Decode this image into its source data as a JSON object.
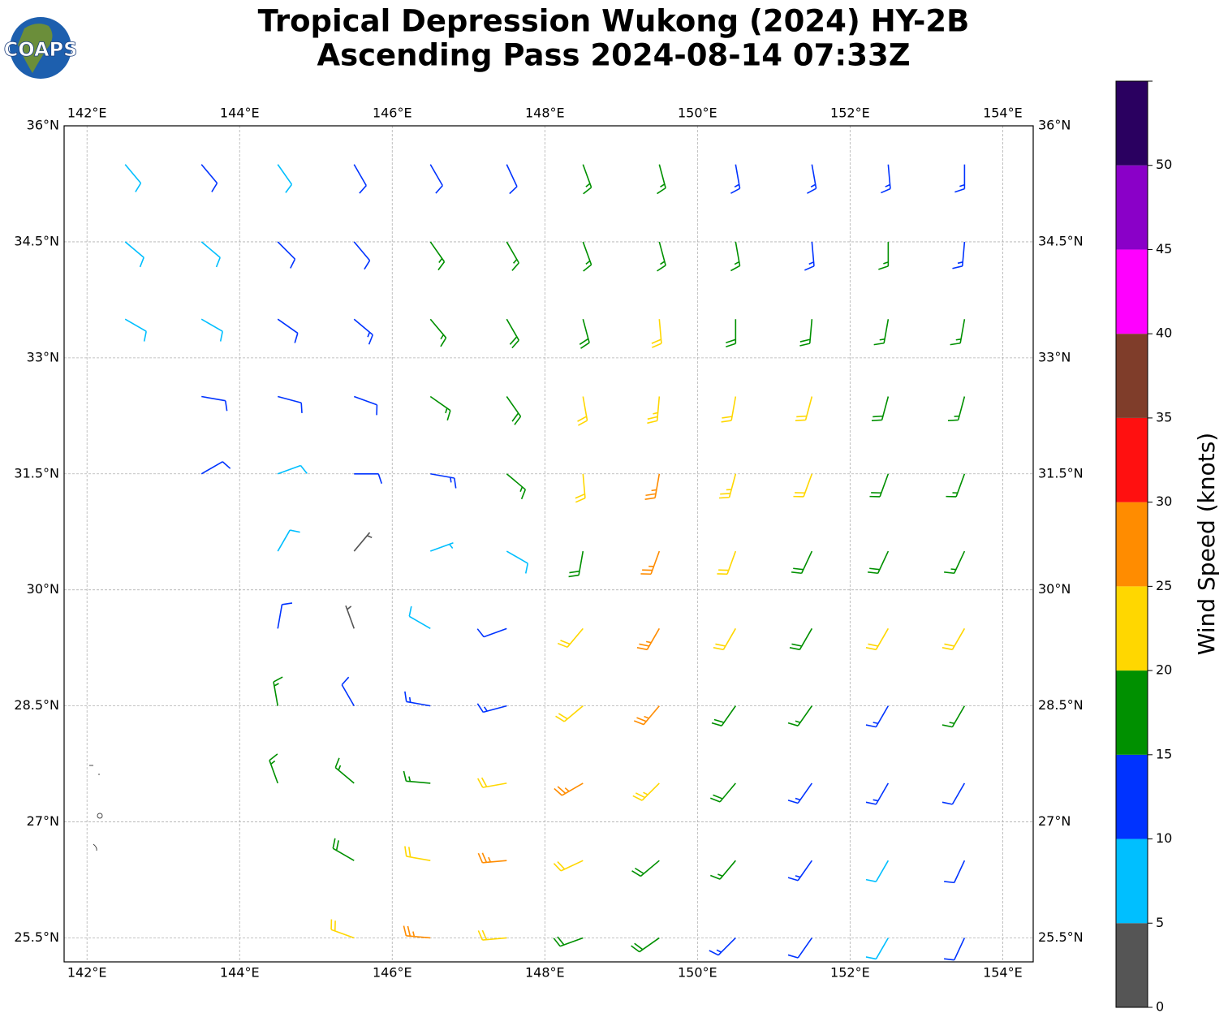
{
  "chart_data": {
    "type": "wind_barbs",
    "title": "Tropical Depression Wukong (2024) HY-2B",
    "subtitle": "Ascending Pass 2024-08-14 07:33Z",
    "logo_text": "COAPS",
    "xlim": [
      141.7,
      154.4
    ],
    "ylim": [
      25.19,
      36
    ],
    "xticks": [
      {
        "value": 142,
        "label": "142°E"
      },
      {
        "value": 144,
        "label": "144°E"
      },
      {
        "value": 146,
        "label": "146°E"
      },
      {
        "value": 148,
        "label": "148°E"
      },
      {
        "value": 150,
        "label": "150°E"
      },
      {
        "value": 152,
        "label": "152°E"
      },
      {
        "value": 154,
        "label": "154°E"
      }
    ],
    "yticks": [
      {
        "value": 25.5,
        "label": "25.5°N"
      },
      {
        "value": 27,
        "label": "27°N"
      },
      {
        "value": 28.5,
        "label": "28.5°N"
      },
      {
        "value": 30,
        "label": "30°N"
      },
      {
        "value": 31.5,
        "label": "31.5°N"
      },
      {
        "value": 33,
        "label": "33°N"
      },
      {
        "value": 34.5,
        "label": "34.5°N"
      },
      {
        "value": 36,
        "label": "36°N"
      }
    ],
    "grid": true,
    "field": {
      "lons": [
        142.5,
        143.5,
        144.5,
        145.5,
        146.5,
        147.5,
        148.5,
        149.5,
        150.5,
        151.5,
        152.5,
        153.5
      ],
      "lats": [
        35.5,
        34.5,
        33.5,
        32.5,
        31.5,
        30.5,
        29.5,
        28.5,
        27.5,
        26.5,
        25.5
      ],
      "speeds": [
        [
          8,
          12,
          8,
          12,
          12,
          12,
          16,
          16,
          13,
          13,
          13,
          13
        ],
        [
          8,
          8,
          12,
          12,
          16,
          16,
          17,
          17,
          16,
          14,
          16,
          13
        ],
        [
          8,
          8,
          12,
          13,
          17,
          18,
          18,
          21,
          19,
          18,
          17,
          16
        ],
        [
          null,
          12,
          12,
          12,
          16,
          18,
          22,
          23,
          22,
          21,
          18,
          17
        ],
        [
          null,
          11,
          9,
          11,
          13,
          16,
          22,
          26,
          23,
          22,
          19,
          17
        ],
        [
          null,
          null,
          8,
          4,
          7,
          8,
          18,
          26,
          22,
          19,
          18,
          17
        ],
        [
          null,
          null,
          11,
          4,
          9,
          12,
          21,
          27,
          22,
          18,
          21,
          21
        ],
        [
          null,
          null,
          16,
          12,
          13,
          14,
          22,
          26,
          19,
          17,
          14,
          17
        ],
        [
          null,
          null,
          17,
          16,
          17,
          22,
          26,
          23,
          19,
          14,
          13,
          12
        ],
        [
          null,
          null,
          null,
          18,
          21,
          26,
          22,
          19,
          17,
          13,
          9,
          11
        ],
        [
          null,
          null,
          null,
          21,
          26,
          22,
          19,
          18,
          14,
          12,
          9,
          12
        ]
      ],
      "directions": [
        [
          140,
          140,
          145,
          150,
          150,
          155,
          160,
          165,
          170,
          170,
          175,
          180
        ],
        [
          130,
          130,
          135,
          140,
          145,
          150,
          160,
          165,
          170,
          175,
          180,
          185
        ],
        [
          120,
          120,
          125,
          130,
          140,
          150,
          165,
          175,
          180,
          185,
          190,
          190
        ],
        [
          null,
          100,
          105,
          110,
          125,
          145,
          170,
          185,
          190,
          195,
          195,
          195
        ],
        [
          null,
          60,
          70,
          90,
          100,
          130,
          175,
          190,
          195,
          200,
          200,
          200
        ],
        [
          null,
          null,
          30,
          40,
          70,
          120,
          190,
          200,
          200,
          205,
          205,
          205
        ],
        [
          null,
          null,
          10,
          340,
          300,
          250,
          220,
          210,
          210,
          210,
          210,
          210
        ],
        [
          null,
          null,
          350,
          330,
          280,
          255,
          230,
          220,
          215,
          215,
          210,
          210
        ],
        [
          null,
          null,
          340,
          310,
          275,
          260,
          240,
          225,
          220,
          215,
          210,
          210
        ],
        [
          null,
          null,
          null,
          300,
          280,
          265,
          245,
          230,
          220,
          215,
          210,
          205
        ],
        [
          null,
          null,
          null,
          290,
          275,
          265,
          250,
          235,
          225,
          215,
          210,
          205
        ]
      ]
    },
    "colorbar": {
      "label": "Wind Speed (knots)",
      "bounds": [
        0,
        5,
        10,
        15,
        20,
        25,
        30,
        35,
        40,
        45,
        50,
        55
      ],
      "colors": [
        "#555555",
        "#00bfff",
        "#0033ff",
        "#009000",
        "#ffd700",
        "#ff8c00",
        "#ff1010",
        "#7f3d2a",
        "#ff00ff",
        "#8a00c8",
        "#2a0060"
      ],
      "ticks": [
        0,
        5,
        10,
        15,
        20,
        25,
        30,
        35,
        40,
        45,
        50
      ]
    }
  }
}
